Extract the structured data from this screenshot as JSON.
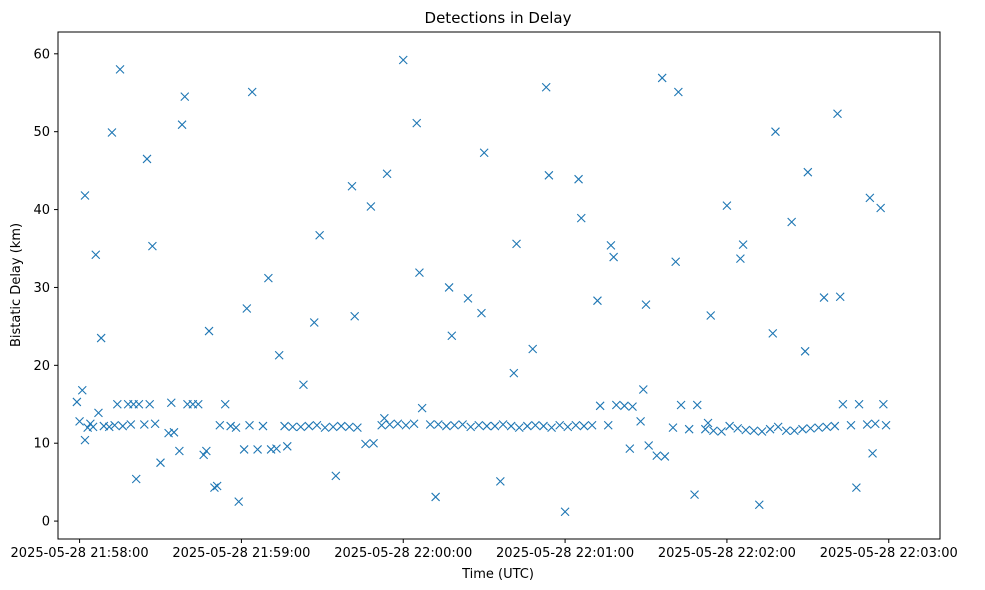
{
  "chart_data": {
    "type": "scatter",
    "title": "Detections in Delay",
    "xlabel": "Time (UTC)",
    "ylabel": "Bistatic Delay (km)",
    "marker": "x",
    "color": "#1f77b4",
    "grid": false,
    "x_ticks": [
      "2025-05-28 21:58:00",
      "2025-05-28 21:59:00",
      "2025-05-28 22:00:00",
      "2025-05-28 22:01:00",
      "2025-05-28 22:02:00",
      "2025-05-28 22:03:00"
    ],
    "y_ticks": [
      0,
      10,
      20,
      30,
      40,
      50,
      60
    ],
    "xlim": [
      "2025-05-28 21:57:52",
      "2025-05-28 22:03:19"
    ],
    "ylim": [
      -2.3,
      62.8
    ],
    "points_time": [
      "2025-05-28 21:57:59",
      "2025-05-28 21:58:00",
      "2025-05-28 21:58:01",
      "2025-05-28 21:58:02",
      "2025-05-28 21:58:03",
      "2025-05-28 21:58:04",
      "2025-05-28 21:58:05",
      "2025-05-28 21:58:07",
      "2025-05-28 21:58:09",
      "2025-05-28 21:58:11",
      "2025-05-28 21:58:13",
      "2025-05-28 21:58:14",
      "2025-05-28 21:58:16",
      "2025-05-28 21:58:18",
      "2025-05-28 21:58:19",
      "2025-05-28 21:58:20",
      "2025-05-28 21:58:22",
      "2025-05-28 21:58:24",
      "2025-05-28 21:58:26",
      "2025-05-28 21:58:28",
      "2025-05-28 21:58:30",
      "2025-05-28 21:58:33",
      "2025-05-28 21:58:35",
      "2025-05-28 21:58:37",
      "2025-05-28 21:58:40",
      "2025-05-28 21:58:42",
      "2025-05-28 21:58:44",
      "2025-05-28 21:58:47",
      "2025-05-28 21:58:50",
      "2025-05-28 21:58:52",
      "2025-05-28 21:58:54",
      "2025-05-28 21:58:56",
      "2025-05-28 21:58:58",
      "2025-05-28 21:59:01",
      "2025-05-28 21:59:03",
      "2025-05-28 21:59:06",
      "2025-05-28 21:59:08",
      "2025-05-28 21:59:11",
      "2025-05-28 21:59:13",
      "2025-05-28 21:59:16",
      "2025-05-28 21:59:19",
      "2025-05-28 21:59:22",
      "2025-05-28 21:59:25",
      "2025-05-28 21:59:28",
      "2025-05-28 21:59:31",
      "2025-05-28 21:59:34",
      "2025-05-28 21:59:37",
      "2025-05-28 21:59:40",
      "2025-05-28 21:59:43",
      "2025-05-28 21:59:46",
      "2025-05-28 21:59:49",
      "2025-05-28 21:59:52",
      "2025-05-28 21:59:55",
      "2025-05-28 21:59:58",
      "2025-05-28 22:00:01",
      "2025-05-28 22:00:04",
      "2025-05-28 22:00:07",
      "2025-05-28 22:00:10",
      "2025-05-28 22:00:13",
      "2025-05-28 22:00:16",
      "2025-05-28 22:00:19",
      "2025-05-28 22:00:22",
      "2025-05-28 22:00:25",
      "2025-05-28 22:00:28",
      "2025-05-28 22:00:31",
      "2025-05-28 22:00:34",
      "2025-05-28 22:00:37",
      "2025-05-28 22:00:40",
      "2025-05-28 22:00:43",
      "2025-05-28 22:00:46",
      "2025-05-28 22:00:49",
      "2025-05-28 22:00:52",
      "2025-05-28 22:00:55",
      "2025-05-28 22:00:58",
      "2025-05-28 22:01:01",
      "2025-05-28 22:01:04",
      "2025-05-28 22:01:07",
      "2025-05-28 22:01:10",
      "2025-05-28 22:01:13",
      "2025-05-28 22:01:16",
      "2025-05-28 22:01:19",
      "2025-05-28 22:01:22",
      "2025-05-28 22:01:25",
      "2025-05-28 22:01:28",
      "2025-05-28 22:01:31",
      "2025-05-28 22:01:34",
      "2025-05-28 22:01:37",
      "2025-05-28 22:01:40",
      "2025-05-28 22:01:43",
      "2025-05-28 22:01:46",
      "2025-05-28 22:01:49",
      "2025-05-28 22:01:52",
      "2025-05-28 22:01:55",
      "2025-05-28 22:01:58",
      "2025-05-28 22:02:01",
      "2025-05-28 22:02:04",
      "2025-05-28 22:02:07",
      "2025-05-28 22:02:10",
      "2025-05-28 22:02:13",
      "2025-05-28 22:02:16",
      "2025-05-28 22:02:19",
      "2025-05-28 22:02:22",
      "2025-05-28 22:02:25",
      "2025-05-28 22:02:28",
      "2025-05-28 22:02:31",
      "2025-05-28 22:02:34",
      "2025-05-28 22:02:37",
      "2025-05-28 22:02:40",
      "2025-05-28 22:02:43",
      "2025-05-28 22:02:46",
      "2025-05-28 22:02:49",
      "2025-05-28 22:02:52",
      "2025-05-28 22:02:55",
      "2025-05-28 22:02:58",
      "2025-05-28 22:02:59",
      "2025-05-28 21:58:06",
      "2025-05-28 21:58:12",
      "2025-05-28 21:58:25",
      "2025-05-28 21:58:38",
      "2025-05-28 21:58:48",
      "2025-05-28 21:59:02",
      "2025-05-28 21:59:14",
      "2025-05-28 21:59:27",
      "2025-05-28 21:59:41",
      "2025-05-28 21:59:53",
      "2025-05-28 22:00:05",
      "2025-05-28 22:00:17",
      "2025-05-28 22:00:29",
      "2025-05-28 22:00:41",
      "2025-05-28 22:00:53",
      "2025-05-28 22:01:05",
      "2025-05-28 22:01:17",
      "2025-05-28 22:01:29",
      "2025-05-28 22:01:41",
      "2025-05-28 22:01:53",
      "2025-05-28 22:02:05",
      "2025-05-28 22:02:17",
      "2025-05-28 22:02:29",
      "2025-05-28 22:02:41",
      "2025-05-28 22:02:53",
      "2025-05-28 21:58:02",
      "2025-05-28 21:58:15",
      "2025-05-28 21:58:27",
      "2025-05-28 21:58:39",
      "2025-05-28 21:58:51",
      "2025-05-28 21:59:04",
      "2025-05-28 21:59:17",
      "2025-05-28 21:59:29",
      "2025-05-28 21:59:42",
      "2025-05-28 21:59:54",
      "2025-05-28 22:00:06",
      "2025-05-28 22:00:18",
      "2025-05-28 22:00:30",
      "2025-05-28 22:00:42",
      "2025-05-28 22:00:54",
      "2025-05-28 22:01:06",
      "2025-05-28 22:01:18",
      "2025-05-28 22:01:30",
      "2025-05-28 22:01:42",
      "2025-05-28 22:01:54",
      "2025-05-28 22:02:06",
      "2025-05-28 22:02:18",
      "2025-05-28 22:02:30",
      "2025-05-28 22:02:42",
      "2025-05-28 22:02:54",
      "2025-05-28 21:58:08",
      "2025-05-28 21:58:21",
      "2025-05-28 21:58:34",
      "2025-05-28 21:58:46",
      "2025-05-28 21:58:59",
      "2025-05-28 21:59:10",
      "2025-05-28 21:59:23",
      "2025-05-28 21:59:35",
      "2025-05-28 21:59:48",
      "2025-05-28 22:00:00",
      "2025-05-28 22:00:12",
      "2025-05-28 22:00:24",
      "2025-05-28 22:00:36",
      "2025-05-28 22:00:48",
      "2025-05-28 22:01:00",
      "2025-05-28 22:01:12",
      "2025-05-28 22:01:24",
      "2025-05-28 22:01:36",
      "2025-05-28 22:01:48",
      "2025-05-28 22:02:00",
      "2025-05-28 22:02:12",
      "2025-05-28 22:02:24",
      "2025-05-28 22:02:36",
      "2025-05-28 22:02:48",
      "2025-05-28 22:02:57"
    ],
    "points_delay": [
      15.3,
      12.8,
      16.8,
      10.4,
      12.0,
      12.5,
      12.1,
      13.9,
      12.2,
      12.1,
      12.3,
      15.0,
      12.2,
      15.0,
      12.4,
      15.0,
      15.0,
      12.4,
      15.0,
      12.5,
      7.5,
      11.3,
      11.4,
      9.0,
      15.0,
      15.0,
      15.0,
      9.0,
      4.3,
      12.3,
      15.0,
      12.2,
      12.0,
      9.2,
      12.3,
      9.2,
      12.2,
      9.2,
      9.3,
      12.2,
      12.1,
      12.1,
      12.2,
      12.3,
      12.0,
      12.1,
      12.2,
      12.1,
      12.0,
      9.9,
      10.0,
      12.3,
      12.4,
      12.5,
      12.3,
      12.5,
      14.5,
      12.4,
      12.4,
      12.2,
      12.3,
      12.4,
      12.1,
      12.3,
      12.2,
      12.2,
      12.4,
      12.2,
      12.0,
      12.2,
      12.3,
      12.2,
      12.0,
      12.3,
      12.1,
      12.3,
      12.2,
      12.3,
      14.8,
      12.3,
      14.9,
      14.8,
      14.7,
      12.8,
      9.7,
      8.4,
      8.3,
      12.0,
      14.9,
      11.8,
      14.9,
      11.8,
      11.6,
      11.5,
      12.2,
      11.9,
      11.7,
      11.6,
      11.5,
      11.8,
      12.1,
      11.6,
      11.6,
      11.8,
      11.9,
      12.0,
      12.1,
      12.2,
      15.0,
      12.3,
      15.0,
      12.4,
      12.5,
      15.0,
      12.3,
      34.2,
      49.9,
      46.5,
      50.9,
      24.4,
      27.3,
      21.3,
      25.5,
      43.0,
      13.2,
      51.1,
      30.0,
      26.7,
      19.0,
      55.7,
      43.9,
      35.4,
      16.9,
      33.3,
      12.6,
      33.7,
      24.1,
      21.8,
      52.3,
      41.5,
      41.8,
      58.0,
      35.3,
      54.5,
      4.5,
      55.1,
      9.6,
      36.7,
      26.3,
      44.6,
      31.9,
      23.8,
      47.3,
      35.6,
      44.4,
      38.9,
      33.9,
      27.8,
      55.1,
      26.4,
      35.5,
      50.0,
      44.8,
      28.8,
      8.7,
      23.5,
      5.4,
      15.2,
      8.5,
      2.5,
      31.2,
      17.5,
      5.8,
      40.4,
      59.2,
      3.1,
      28.6,
      5.1,
      22.1,
      1.2,
      28.3,
      9.3,
      56.9,
      3.4,
      40.5,
      2.1,
      38.4,
      28.7,
      4.3,
      40.2
    ]
  }
}
